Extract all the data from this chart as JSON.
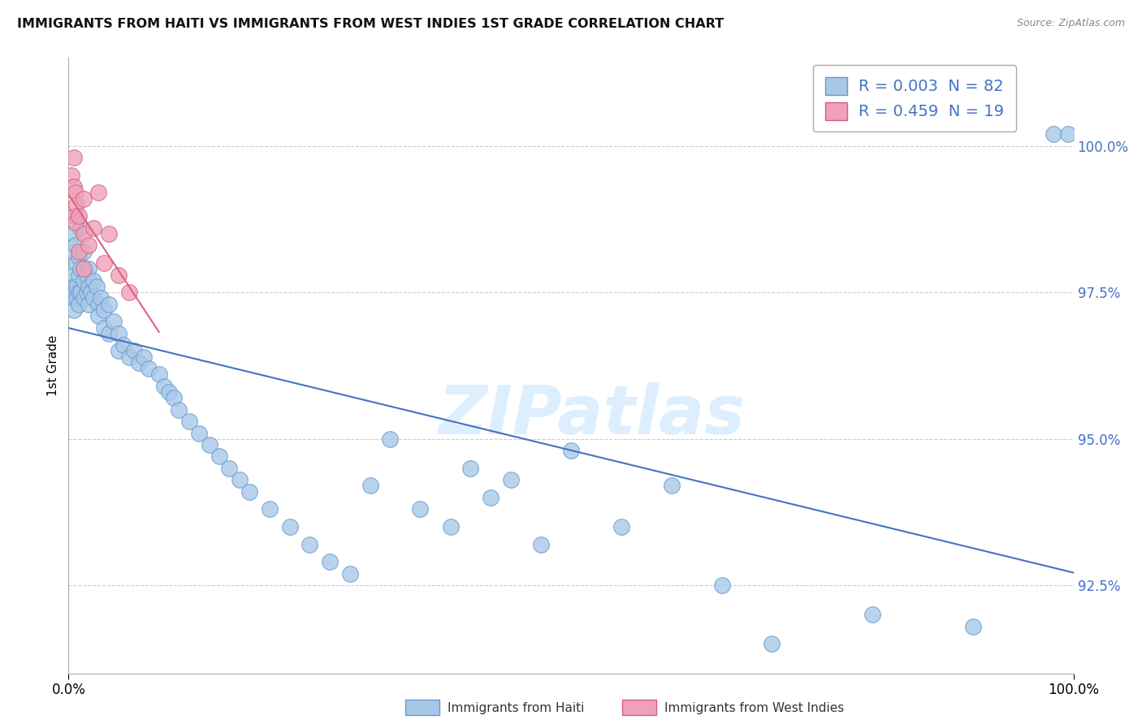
{
  "title": "IMMIGRANTS FROM HAITI VS IMMIGRANTS FROM WEST INDIES 1ST GRADE CORRELATION CHART",
  "source": "Source: ZipAtlas.com",
  "xlabel_haiti": "Immigrants from Haiti",
  "xlabel_wi": "Immigrants from West Indies",
  "ylabel": "1st Grade",
  "legend1_r": "0.003",
  "legend1_n": "82",
  "legend2_r": "0.459",
  "legend2_n": "19",
  "watermark": "ZIPatlas",
  "xlim": [
    0.0,
    100.0
  ],
  "ylim": [
    91.0,
    101.5
  ],
  "yticks": [
    92.5,
    95.0,
    97.5,
    100.0
  ],
  "ytick_labels": [
    "92.5%",
    "95.0%",
    "97.5%",
    "100.0%"
  ],
  "xticks": [
    0.0,
    100.0
  ],
  "xtick_labels": [
    "0.0%",
    "100.0%"
  ],
  "blue_scatter_color": "#a8c8e8",
  "blue_scatter_edge": "#6699cc",
  "pink_scatter_color": "#f0a0b8",
  "pink_scatter_edge": "#d06080",
  "blue_line_color": "#4472c4",
  "pink_line_color": "#e06080",
  "haiti_x": [
    0.5,
    0.5,
    0.5,
    0.5,
    0.5,
    0.5,
    0.5,
    0.7,
    0.7,
    0.7,
    0.8,
    0.8,
    0.8,
    1.0,
    1.0,
    1.0,
    1.0,
    1.2,
    1.2,
    1.2,
    1.5,
    1.5,
    1.5,
    1.8,
    1.8,
    2.0,
    2.0,
    2.0,
    2.2,
    2.5,
    2.5,
    2.8,
    3.0,
    3.0,
    3.2,
    3.5,
    3.5,
    4.0,
    4.0,
    4.5,
    5.0,
    5.0,
    5.5,
    6.0,
    6.5,
    7.0,
    7.5,
    8.0,
    9.0,
    9.5,
    10.0,
    10.5,
    11.0,
    12.0,
    13.0,
    14.0,
    15.0,
    16.0,
    17.0,
    18.0,
    20.0,
    22.0,
    24.0,
    26.0,
    28.0,
    30.0,
    32.0,
    35.0,
    38.0,
    40.0,
    42.0,
    44.0,
    47.0,
    50.0,
    55.0,
    60.0,
    65.0,
    70.0,
    80.0,
    90.0,
    98.0,
    99.5
  ],
  "haiti_y": [
    98.5,
    98.2,
    97.8,
    97.6,
    97.5,
    97.4,
    97.2,
    98.8,
    98.3,
    97.5,
    98.0,
    97.6,
    97.4,
    98.1,
    97.8,
    97.5,
    97.3,
    98.6,
    97.9,
    97.5,
    98.2,
    97.7,
    97.4,
    97.8,
    97.5,
    97.9,
    97.6,
    97.3,
    97.5,
    97.7,
    97.4,
    97.6,
    97.3,
    97.1,
    97.4,
    97.2,
    96.9,
    97.3,
    96.8,
    97.0,
    96.8,
    96.5,
    96.6,
    96.4,
    96.5,
    96.3,
    96.4,
    96.2,
    96.1,
    95.9,
    95.8,
    95.7,
    95.5,
    95.3,
    95.1,
    94.9,
    94.7,
    94.5,
    94.3,
    94.1,
    93.8,
    93.5,
    93.2,
    92.9,
    92.7,
    94.2,
    95.0,
    93.8,
    93.5,
    94.5,
    94.0,
    94.3,
    93.2,
    94.8,
    93.5,
    94.2,
    92.5,
    91.5,
    92.0,
    91.8,
    100.2,
    100.2
  ],
  "wi_x": [
    0.3,
    0.5,
    0.5,
    0.5,
    0.7,
    0.7,
    0.8,
    1.0,
    1.0,
    1.5,
    1.5,
    1.5,
    2.0,
    2.5,
    3.0,
    3.5,
    4.0,
    5.0,
    6.0
  ],
  "wi_y": [
    99.5,
    99.8,
    99.3,
    98.8,
    99.2,
    98.7,
    99.0,
    98.8,
    98.2,
    99.1,
    98.5,
    97.9,
    98.3,
    98.6,
    99.2,
    98.0,
    98.5,
    97.8,
    97.5
  ]
}
